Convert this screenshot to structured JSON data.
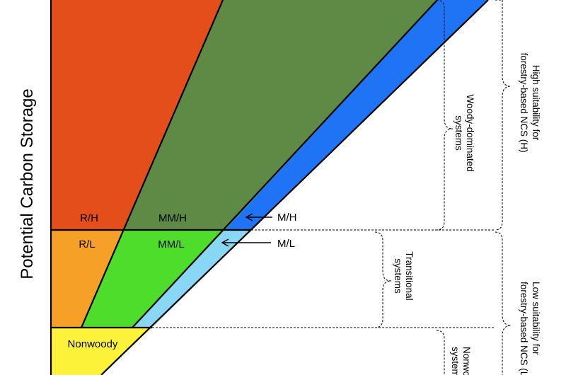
{
  "axis": {
    "y_title": "Potential Carbon Storage"
  },
  "regions": {
    "rh": "R/H",
    "mmh": "MM/H",
    "rl": "R/L",
    "mml": "MM/L",
    "nonwoody": "Nonwoody"
  },
  "callouts": {
    "mh": "M/H",
    "ml": "M/L"
  },
  "systems": {
    "woody": [
      "Woody-dominated",
      "systems"
    ],
    "transitional": [
      "Transitional",
      "systems"
    ],
    "nonwoody": [
      "Nonwoody",
      "systems"
    ]
  },
  "suitability": {
    "high": [
      "High suitability for",
      "forestry-based NCS (H)"
    ],
    "low": [
      "Low suitability for",
      "forestry-based NCS (L)"
    ]
  },
  "colors": {
    "rh": "#e34e1b",
    "mmh": "#5e8a45",
    "mh": "#1f74f5",
    "rl": "#f7a028",
    "mml": "#4fdd2b",
    "ml": "#88d8f5",
    "nonwoody": "#fdf23a"
  }
}
